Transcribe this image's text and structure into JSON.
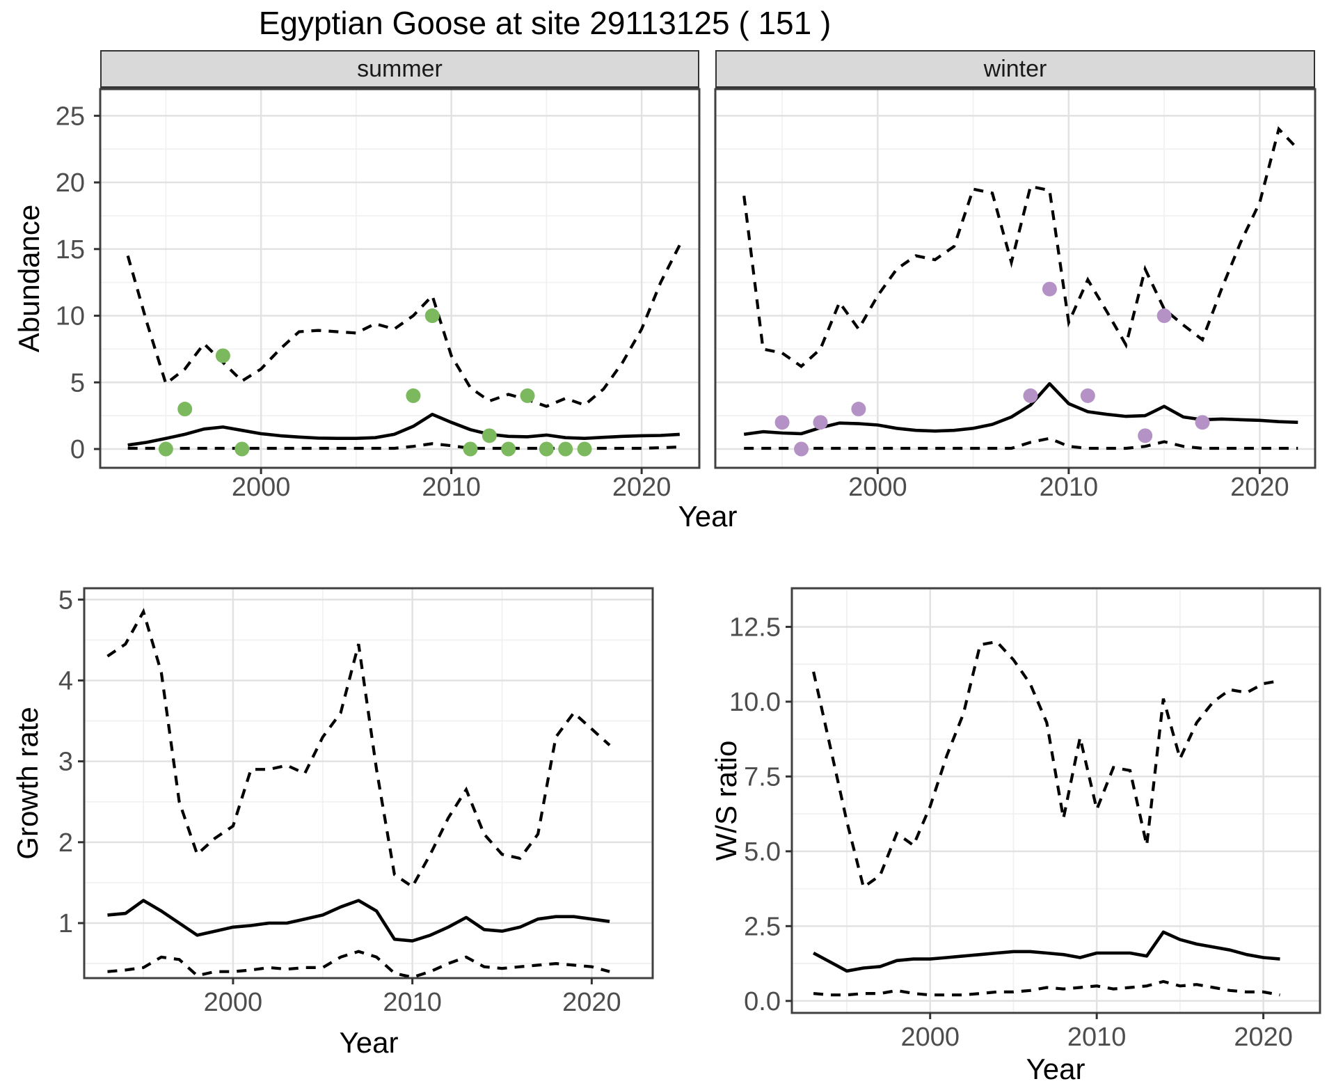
{
  "title": "Egyptian Goose at site 29113125 ( 151 )",
  "colors": {
    "summer_points": "#7CB95E",
    "winter_points": "#B592C6",
    "line": "#000000",
    "strip_bg": "#D9D9D9",
    "strip_border": "#333333",
    "panel_border": "#404040",
    "grid_major": "#E2E2E2",
    "grid_minor": "#F1F1F1",
    "tick_text": "#4D4D4D"
  },
  "chart_data": [
    {
      "name": "abundance_by_season",
      "type": "line",
      "xlabel": "Year",
      "ylabel": "Abundance",
      "facets": [
        "summer",
        "winter"
      ],
      "x_ticks": [
        2000,
        2010,
        2020
      ],
      "x_tick_labels": [
        "2000",
        "2010",
        "2020"
      ],
      "y_ticks": [
        0,
        5,
        10,
        15,
        20,
        25
      ],
      "y_tick_labels": [
        "0",
        "5",
        "10",
        "15",
        "20",
        "25"
      ],
      "xlim": [
        1991.5,
        2023
      ],
      "ylim": [
        -1.4,
        27
      ],
      "grid": true,
      "legend_position": "none",
      "line_years": [
        1993,
        1994,
        1995,
        1996,
        1997,
        1998,
        1999,
        2000,
        2001,
        2002,
        2003,
        2004,
        2005,
        2006,
        2007,
        2008,
        2009,
        2010,
        2011,
        2012,
        2013,
        2014,
        2015,
        2016,
        2017,
        2018,
        2019,
        2020,
        2021,
        2022
      ],
      "panels": [
        {
          "facet": "summer",
          "observations": {
            "years": [
              1995,
              1996,
              1998,
              1999,
              2008,
              2009,
              2011,
              2012,
              2013,
              2014,
              2015,
              2016,
              2017
            ],
            "values": [
              0,
              3,
              7,
              0,
              4,
              10,
              0,
              1,
              0,
              4,
              0,
              0,
              0
            ]
          },
          "fit": [
            0.3,
            0.5,
            0.8,
            1.1,
            1.5,
            1.65,
            1.4,
            1.15,
            1.0,
            0.9,
            0.82,
            0.8,
            0.8,
            0.85,
            1.1,
            1.7,
            2.6,
            2.0,
            1.45,
            1.1,
            0.95,
            0.92,
            1.05,
            0.85,
            0.8,
            0.88,
            0.95,
            1.0,
            1.02,
            1.1
          ],
          "upper": [
            14.5,
            9.5,
            4.9,
            6.0,
            7.9,
            6.5,
            5.1,
            6.0,
            7.5,
            8.8,
            8.9,
            8.8,
            8.7,
            9.4,
            9.0,
            10.0,
            11.5,
            7.0,
            4.6,
            3.6,
            4.1,
            3.7,
            3.2,
            3.8,
            3.3,
            4.5,
            6.5,
            9.0,
            12.5,
            15.3
          ],
          "lower": [
            0.05,
            0.05,
            0.05,
            0.05,
            0.05,
            0.05,
            0.05,
            0.05,
            0.05,
            0.05,
            0.05,
            0.05,
            0.05,
            0.05,
            0.05,
            0.2,
            0.4,
            0.25,
            0.05,
            0.05,
            0.05,
            0.05,
            0.05,
            0.05,
            0.05,
            0.05,
            0.05,
            0.05,
            0.1,
            0.15
          ]
        },
        {
          "facet": "winter",
          "observations": {
            "years": [
              1995,
              1996,
              1997,
              1999,
              2008,
              2009,
              2011,
              2014,
              2015,
              2017
            ],
            "values": [
              2,
              0,
              2,
              3,
              4,
              12,
              4,
              1,
              10,
              2
            ]
          },
          "fit": [
            1.1,
            1.3,
            1.2,
            1.15,
            1.6,
            1.95,
            1.9,
            1.8,
            1.55,
            1.4,
            1.35,
            1.4,
            1.55,
            1.85,
            2.4,
            3.3,
            4.9,
            3.4,
            2.8,
            2.6,
            2.45,
            2.5,
            3.2,
            2.4,
            2.2,
            2.25,
            2.2,
            2.15,
            2.05,
            2.0
          ],
          "upper": [
            19,
            7.5,
            7.2,
            6.2,
            7.5,
            11,
            9,
            11.5,
            13.5,
            14.5,
            14.2,
            15.2,
            19.5,
            19.2,
            14,
            19.7,
            19.4,
            9.5,
            12.7,
            10.3,
            7.8,
            13.5,
            10.5,
            9.3,
            8.2,
            12,
            15.5,
            18.5,
            24,
            22.5
          ],
          "lower": [
            0.05,
            0.05,
            0.05,
            0.05,
            0.05,
            0.05,
            0.05,
            0.05,
            0.05,
            0.05,
            0.05,
            0.05,
            0.05,
            0.05,
            0.05,
            0.5,
            0.8,
            0.2,
            0.05,
            0.05,
            0.05,
            0.2,
            0.55,
            0.2,
            0.05,
            0.05,
            0.05,
            0.05,
            0.05,
            0.05
          ]
        }
      ]
    },
    {
      "name": "growth_rate",
      "type": "line",
      "xlabel": "Year",
      "ylabel": "Growth rate",
      "x_ticks": [
        2000,
        2010,
        2020
      ],
      "x_tick_labels": [
        "2000",
        "2010",
        "2020"
      ],
      "y_ticks": [
        1,
        2,
        3,
        4,
        5
      ],
      "y_tick_labels": [
        "1",
        "2",
        "3",
        "4",
        "5"
      ],
      "xlim": [
        1991.7,
        2023.4
      ],
      "ylim": [
        0.3,
        5.15
      ],
      "grid": true,
      "line_years": [
        1993,
        1994,
        1995,
        1996,
        1997,
        1998,
        1999,
        2000,
        2001,
        2002,
        2003,
        2004,
        2005,
        2006,
        2007,
        2008,
        2009,
        2010,
        2011,
        2012,
        2013,
        2014,
        2015,
        2016,
        2017,
        2018,
        2019,
        2020,
        2021
      ],
      "fit": [
        1.1,
        1.12,
        1.28,
        1.15,
        1.0,
        0.85,
        0.9,
        0.95,
        0.97,
        1.0,
        1.0,
        1.05,
        1.1,
        1.2,
        1.28,
        1.15,
        0.8,
        0.78,
        0.85,
        0.95,
        1.07,
        0.92,
        0.9,
        0.95,
        1.05,
        1.08,
        1.08,
        1.05,
        1.02
      ],
      "upper": [
        4.3,
        4.45,
        4.85,
        4.1,
        2.5,
        1.85,
        2.05,
        2.2,
        2.9,
        2.9,
        2.95,
        2.85,
        3.3,
        3.6,
        4.45,
        2.9,
        1.6,
        1.45,
        1.85,
        2.3,
        2.65,
        2.1,
        1.85,
        1.8,
        2.1,
        3.3,
        3.6,
        3.4,
        3.2
      ],
      "lower": [
        0.4,
        0.42,
        0.45,
        0.58,
        0.55,
        0.35,
        0.4,
        0.4,
        0.42,
        0.45,
        0.43,
        0.45,
        0.45,
        0.58,
        0.65,
        0.58,
        0.38,
        0.33,
        0.4,
        0.5,
        0.58,
        0.46,
        0.44,
        0.46,
        0.48,
        0.5,
        0.48,
        0.46,
        0.4
      ]
    },
    {
      "name": "winter_summer_ratio",
      "type": "line",
      "xlabel": "Year",
      "ylabel": "W/S ratio",
      "x_ticks": [
        2000,
        2010,
        2020
      ],
      "x_tick_labels": [
        "2000",
        "2010",
        "2020"
      ],
      "y_ticks": [
        0,
        2.5,
        5,
        7.5,
        10,
        12.5
      ],
      "y_tick_labels": [
        "0.0",
        "2.5",
        "5.0",
        "7.5",
        "10.0",
        "12.5"
      ],
      "xlim": [
        1991.7,
        2023.4
      ],
      "ylim": [
        -0.4,
        13.8
      ],
      "grid": true,
      "line_years": [
        1993,
        1994,
        1995,
        1996,
        1997,
        1998,
        1999,
        2000,
        2001,
        2002,
        2003,
        2004,
        2005,
        2006,
        2007,
        2008,
        2009,
        2010,
        2011,
        2012,
        2013,
        2014,
        2015,
        2016,
        2017,
        2018,
        2019,
        2020,
        2021
      ],
      "fit": [
        1.6,
        1.3,
        1.0,
        1.1,
        1.15,
        1.35,
        1.4,
        1.4,
        1.45,
        1.5,
        1.55,
        1.6,
        1.65,
        1.65,
        1.6,
        1.55,
        1.45,
        1.6,
        1.6,
        1.6,
        1.5,
        2.3,
        2.05,
        1.9,
        1.8,
        1.7,
        1.55,
        1.45,
        1.4
      ],
      "upper": [
        11.0,
        8.5,
        6.0,
        3.8,
        4.2,
        5.6,
        5.2,
        6.5,
        8.2,
        9.6,
        11.9,
        12.0,
        11.4,
        10.6,
        9.3,
        6.1,
        8.8,
        6.4,
        7.8,
        7.7,
        5.2,
        10.1,
        8.1,
        9.3,
        10.0,
        10.4,
        10.3,
        10.6,
        10.7
      ],
      "lower": [
        0.25,
        0.2,
        0.2,
        0.25,
        0.25,
        0.35,
        0.25,
        0.2,
        0.2,
        0.2,
        0.25,
        0.3,
        0.3,
        0.35,
        0.45,
        0.4,
        0.45,
        0.5,
        0.4,
        0.45,
        0.5,
        0.65,
        0.5,
        0.55,
        0.45,
        0.35,
        0.3,
        0.3,
        0.2
      ]
    }
  ]
}
